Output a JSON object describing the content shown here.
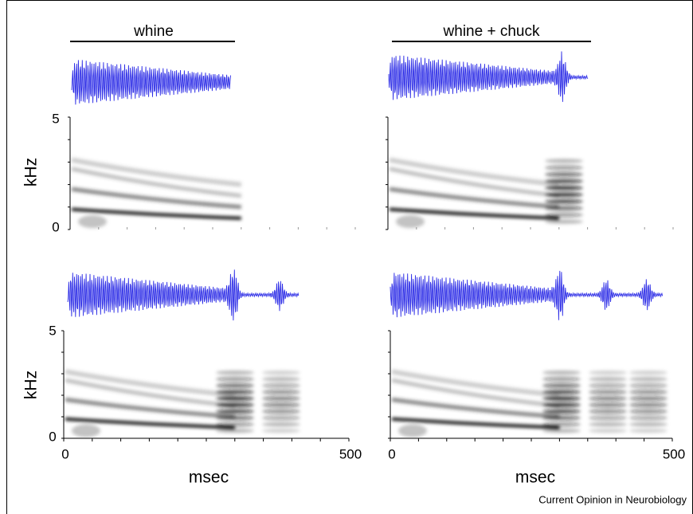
{
  "top_left": {
    "title": "whine",
    "y_label": "kHz",
    "y_ticks": [
      "5",
      "0"
    ]
  },
  "top_right": {
    "title": "whine + chuck"
  },
  "bottom_left": {
    "y_label": "kHz",
    "y_ticks": [
      "5",
      "0"
    ],
    "x_label": "msec",
    "x_ticks": [
      "0",
      "500"
    ]
  },
  "bottom_right": {
    "x_label": "msec",
    "x_ticks": [
      "0",
      "500"
    ]
  },
  "credit": "Current Opinion in Neurobiology"
}
